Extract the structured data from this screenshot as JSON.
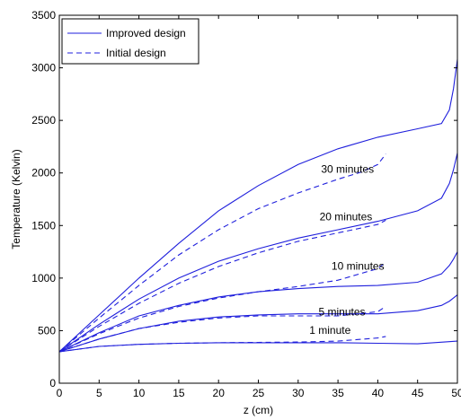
{
  "chart_data": {
    "type": "line",
    "title": "",
    "xlabel": "z (cm)",
    "ylabel": "Temperature (Kelvin)",
    "xlim": [
      0,
      50
    ],
    "ylim": [
      0,
      3500
    ],
    "xticks": [
      0,
      5,
      10,
      15,
      20,
      25,
      30,
      35,
      40,
      45,
      50
    ],
    "yticks": [
      0,
      500,
      1000,
      1500,
      2000,
      2500,
      3000,
      3500
    ],
    "grid": false,
    "legend_position": "top-left",
    "line_color": "#1f1fdc",
    "legend": [
      {
        "label": "Improved design",
        "style": "solid"
      },
      {
        "label": "Initial design",
        "style": "dashed"
      }
    ],
    "annotations": [
      {
        "text": "30 minutes",
        "x": 36.2,
        "y": 2000
      },
      {
        "text": "20 minutes",
        "x": 36.0,
        "y": 1550
      },
      {
        "text": "10 minutes",
        "x": 37.5,
        "y": 1080
      },
      {
        "text": "5 minutes",
        "x": 35.5,
        "y": 645
      },
      {
        "text": "1 minute",
        "x": 34.0,
        "y": 470
      }
    ],
    "series": [
      {
        "style": "solid",
        "x": [
          0,
          5,
          10,
          15,
          20,
          25,
          30,
          35,
          40,
          45,
          48,
          49,
          49.5,
          50
        ],
        "y": [
          300,
          650,
          1000,
          1330,
          1640,
          1880,
          2080,
          2230,
          2340,
          2420,
          2470,
          2600,
          2800,
          3080
        ]
      },
      {
        "style": "dashed",
        "x": [
          0,
          5,
          10,
          15,
          20,
          25,
          30,
          35,
          38,
          40,
          41
        ],
        "y": [
          300,
          620,
          930,
          1220,
          1460,
          1660,
          1810,
          1940,
          2010,
          2080,
          2180
        ]
      },
      {
        "style": "solid",
        "x": [
          0,
          5,
          10,
          15,
          20,
          25,
          30,
          35,
          40,
          45,
          48,
          49,
          49.5,
          50
        ],
        "y": [
          300,
          560,
          800,
          1000,
          1160,
          1280,
          1380,
          1460,
          1540,
          1640,
          1760,
          1900,
          2030,
          2190
        ]
      },
      {
        "style": "dashed",
        "x": [
          0,
          5,
          10,
          15,
          20,
          25,
          30,
          35,
          40,
          41
        ],
        "y": [
          300,
          540,
          760,
          950,
          1110,
          1240,
          1350,
          1430,
          1510,
          1550
        ]
      },
      {
        "style": "solid",
        "x": [
          0,
          5,
          10,
          15,
          20,
          25,
          30,
          35,
          40,
          45,
          48,
          49,
          49.5,
          50
        ],
        "y": [
          300,
          480,
          640,
          740,
          820,
          870,
          900,
          920,
          930,
          960,
          1040,
          1120,
          1180,
          1250
        ]
      },
      {
        "style": "dashed",
        "x": [
          0,
          5,
          10,
          15,
          20,
          25,
          30,
          35,
          40,
          41
        ],
        "y": [
          300,
          470,
          620,
          730,
          810,
          870,
          920,
          980,
          1090,
          1150
        ]
      },
      {
        "style": "solid",
        "x": [
          0,
          5,
          10,
          15,
          20,
          25,
          30,
          35,
          40,
          45,
          48,
          49,
          49.5,
          50
        ],
        "y": [
          300,
          420,
          520,
          590,
          630,
          650,
          660,
          660,
          660,
          690,
          740,
          780,
          810,
          840
        ]
      },
      {
        "style": "dashed",
        "x": [
          0,
          5,
          10,
          15,
          20,
          25,
          30,
          35,
          40,
          41
        ],
        "y": [
          300,
          420,
          520,
          580,
          620,
          640,
          640,
          640,
          680,
          730
        ]
      },
      {
        "style": "solid",
        "x": [
          0,
          5,
          10,
          15,
          20,
          25,
          30,
          35,
          40,
          45,
          50
        ],
        "y": [
          300,
          350,
          370,
          380,
          385,
          385,
          385,
          385,
          380,
          375,
          400
        ]
      },
      {
        "style": "dashed",
        "x": [
          0,
          5,
          10,
          15,
          20,
          25,
          30,
          35,
          40,
          41
        ],
        "y": [
          300,
          350,
          370,
          380,
          385,
          388,
          392,
          400,
          430,
          445
        ]
      }
    ]
  }
}
